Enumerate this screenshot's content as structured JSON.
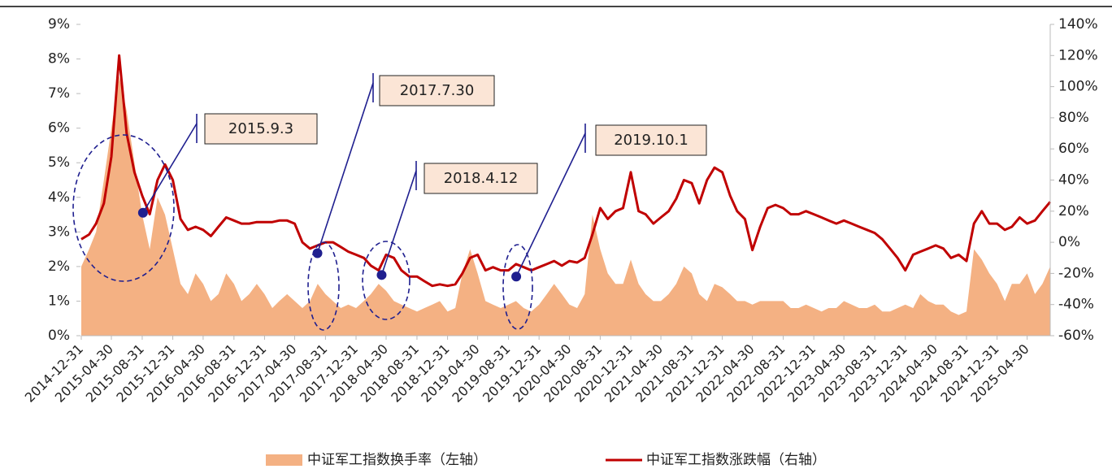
{
  "chart_data": {
    "type": "area-line",
    "x": [
      "2014-12",
      "2015-01",
      "2015-02",
      "2015-03",
      "2015-04",
      "2015-05",
      "2015-06",
      "2015-07",
      "2015-08",
      "2015-09",
      "2015-10",
      "2015-11",
      "2015-12",
      "2016-01",
      "2016-02",
      "2016-03",
      "2016-04",
      "2016-05",
      "2016-06",
      "2016-07",
      "2016-08",
      "2016-09",
      "2016-10",
      "2016-11",
      "2016-12",
      "2017-01",
      "2017-02",
      "2017-03",
      "2017-04",
      "2017-05",
      "2017-06",
      "2017-07",
      "2017-08",
      "2017-09",
      "2017-10",
      "2017-11",
      "2017-12",
      "2018-01",
      "2018-02",
      "2018-03",
      "2018-04",
      "2018-05",
      "2018-06",
      "2018-07",
      "2018-08",
      "2018-09",
      "2018-10",
      "2018-11",
      "2018-12",
      "2019-01",
      "2019-02",
      "2019-03",
      "2019-04",
      "2019-05",
      "2019-06",
      "2019-07",
      "2019-08",
      "2019-09",
      "2019-10",
      "2019-11",
      "2019-12",
      "2020-01",
      "2020-02",
      "2020-03",
      "2020-04",
      "2020-05",
      "2020-06",
      "2020-07",
      "2020-08",
      "2020-09",
      "2020-10",
      "2020-11",
      "2020-12",
      "2021-01",
      "2021-02",
      "2021-03",
      "2021-04",
      "2021-05",
      "2021-06",
      "2021-07",
      "2021-08",
      "2021-09",
      "2021-10",
      "2021-11",
      "2021-12",
      "2022-01",
      "2022-02",
      "2022-03",
      "2022-04",
      "2022-05",
      "2022-06",
      "2022-07",
      "2022-08",
      "2022-09",
      "2022-10",
      "2022-11",
      "2022-12",
      "2023-01",
      "2023-02",
      "2023-03",
      "2023-04",
      "2023-05",
      "2023-06",
      "2023-07",
      "2023-08",
      "2023-09",
      "2023-10",
      "2023-11",
      "2023-12",
      "2024-01",
      "2024-02",
      "2024-03",
      "2024-04",
      "2024-05",
      "2024-06",
      "2024-07",
      "2024-08",
      "2024-09",
      "2024-10",
      "2024-11",
      "2024-12",
      "2025-01",
      "2025-02",
      "2025-03",
      "2025-04",
      "2025-05",
      "2025-06",
      "2025-07"
    ],
    "series": [
      {
        "name": "中证军工指数换手率（左轴）",
        "color": "#f4b183",
        "axis": "y",
        "values": [
          2.0,
          2.5,
          3.0,
          4.5,
          6.0,
          7.5,
          6.5,
          5.0,
          3.5,
          2.5,
          4.0,
          3.5,
          2.5,
          1.5,
          1.2,
          1.8,
          1.5,
          1.0,
          1.2,
          1.8,
          1.5,
          1.0,
          1.2,
          1.5,
          1.2,
          0.8,
          1.0,
          1.2,
          1.0,
          0.8,
          1.0,
          1.5,
          1.2,
          1.0,
          0.8,
          0.9,
          0.8,
          1.0,
          1.2,
          1.5,
          1.3,
          1.0,
          0.9,
          0.8,
          0.7,
          0.8,
          0.9,
          1.0,
          0.7,
          0.8,
          1.8,
          2.5,
          1.8,
          1.0,
          0.9,
          0.8,
          0.9,
          1.0,
          0.8,
          0.7,
          0.9,
          1.2,
          1.5,
          1.2,
          0.9,
          0.8,
          1.2,
          3.5,
          2.5,
          1.8,
          1.5,
          1.5,
          2.2,
          1.5,
          1.2,
          1.0,
          1.0,
          1.2,
          1.5,
          2.0,
          1.8,
          1.2,
          1.0,
          1.5,
          1.4,
          1.2,
          1.0,
          1.0,
          0.9,
          1.0,
          1.0,
          1.0,
          1.0,
          0.8,
          0.8,
          0.9,
          0.8,
          0.7,
          0.8,
          0.8,
          1.0,
          0.9,
          0.8,
          0.8,
          0.9,
          0.7,
          0.7,
          0.8,
          0.9,
          0.8,
          1.2,
          1.0,
          0.9,
          0.9,
          0.7,
          0.6,
          0.7,
          2.5,
          2.2,
          1.8,
          1.5,
          1.0,
          1.5,
          1.5,
          1.8,
          1.2,
          1.5,
          2.0
        ]
      },
      {
        "name": "中证军工指数涨跌幅（右轴）",
        "color": "#c00000",
        "axis": "y2",
        "values": [
          2,
          5,
          12,
          25,
          55,
          120,
          70,
          45,
          30,
          18,
          40,
          50,
          40,
          15,
          8,
          10,
          8,
          4,
          10,
          16,
          14,
          12,
          12,
          13,
          13,
          13,
          14,
          14,
          12,
          0,
          -4,
          -2,
          0,
          0,
          -3,
          -6,
          -8,
          -10,
          -15,
          -18,
          -8,
          -10,
          -18,
          -22,
          -22,
          -25,
          -28,
          -27,
          -28,
          -27,
          -20,
          -10,
          -8,
          -18,
          -16,
          -18,
          -18,
          -14,
          -16,
          -18,
          -16,
          -14,
          -12,
          -15,
          -12,
          -13,
          -10,
          5,
          22,
          15,
          20,
          22,
          45,
          20,
          18,
          12,
          16,
          20,
          28,
          40,
          38,
          25,
          40,
          48,
          45,
          30,
          20,
          15,
          -5,
          10,
          22,
          24,
          22,
          18,
          18,
          20,
          18,
          16,
          14,
          12,
          14,
          12,
          10,
          8,
          6,
          2,
          -4,
          -10,
          -18,
          -8,
          -6,
          -4,
          -2,
          -4,
          -10,
          -8,
          -12,
          12,
          20,
          12,
          12,
          8,
          10,
          16,
          12,
          14,
          20,
          26
        ]
      }
    ],
    "xlim": [
      "2014-12-31",
      "2025-07-31"
    ],
    "xticks": [
      "2014-12-31",
      "2015-04-30",
      "2015-08-31",
      "2015-12-31",
      "2016-04-30",
      "2016-08-31",
      "2016-12-31",
      "2017-04-30",
      "2017-08-31",
      "2017-12-31",
      "2018-04-30",
      "2018-08-31",
      "2018-12-31",
      "2019-04-30",
      "2019-08-31",
      "2019-12-31",
      "2020-04-30",
      "2020-08-31",
      "2020-12-31",
      "2021-04-30",
      "2021-08-31",
      "2021-12-31",
      "2022-04-30",
      "2022-08-31",
      "2022-12-31",
      "2023-04-30",
      "2023-08-31",
      "2023-12-31",
      "2024-04-30",
      "2024-08-31",
      "2024-12-31",
      "2025-04-30"
    ],
    "ylim": [
      0,
      9
    ],
    "yticks": [
      {
        "value": 0,
        "label": "0%"
      },
      {
        "value": 1,
        "label": "1%"
      },
      {
        "value": 2,
        "label": "2%"
      },
      {
        "value": 3,
        "label": "3%"
      },
      {
        "value": 4,
        "label": "4%"
      },
      {
        "value": 5,
        "label": "5%"
      },
      {
        "value": 6,
        "label": "6%"
      },
      {
        "value": 7,
        "label": "7%"
      },
      {
        "value": 8,
        "label": "8%"
      },
      {
        "value": 9,
        "label": "9%"
      }
    ],
    "y2lim": [
      -60,
      140
    ],
    "y2ticks": [
      {
        "value": -60,
        "label": "-60%"
      },
      {
        "value": -40,
        "label": "-40%"
      },
      {
        "value": -20,
        "label": "-20%"
      },
      {
        "value": 0,
        "label": "0%"
      },
      {
        "value": 20,
        "label": "20%"
      },
      {
        "value": 40,
        "label": "40%"
      },
      {
        "value": 60,
        "label": "60%"
      },
      {
        "value": 80,
        "label": "80%"
      },
      {
        "value": 100,
        "label": "100%"
      },
      {
        "value": 120,
        "label": "120%"
      },
      {
        "value": 140,
        "label": "140%"
      }
    ],
    "annotations": [
      {
        "label": "2015.9.3",
        "x": "2015-09-03",
        "y": 19
      },
      {
        "label": "2017.7.30",
        "x": "2017-07-30",
        "y": -7
      },
      {
        "label": "2018.4.12",
        "x": "2018-04-12",
        "y": -21
      },
      {
        "label": "2019.10.1",
        "x": "2019-10-01",
        "y": -22
      }
    ]
  }
}
